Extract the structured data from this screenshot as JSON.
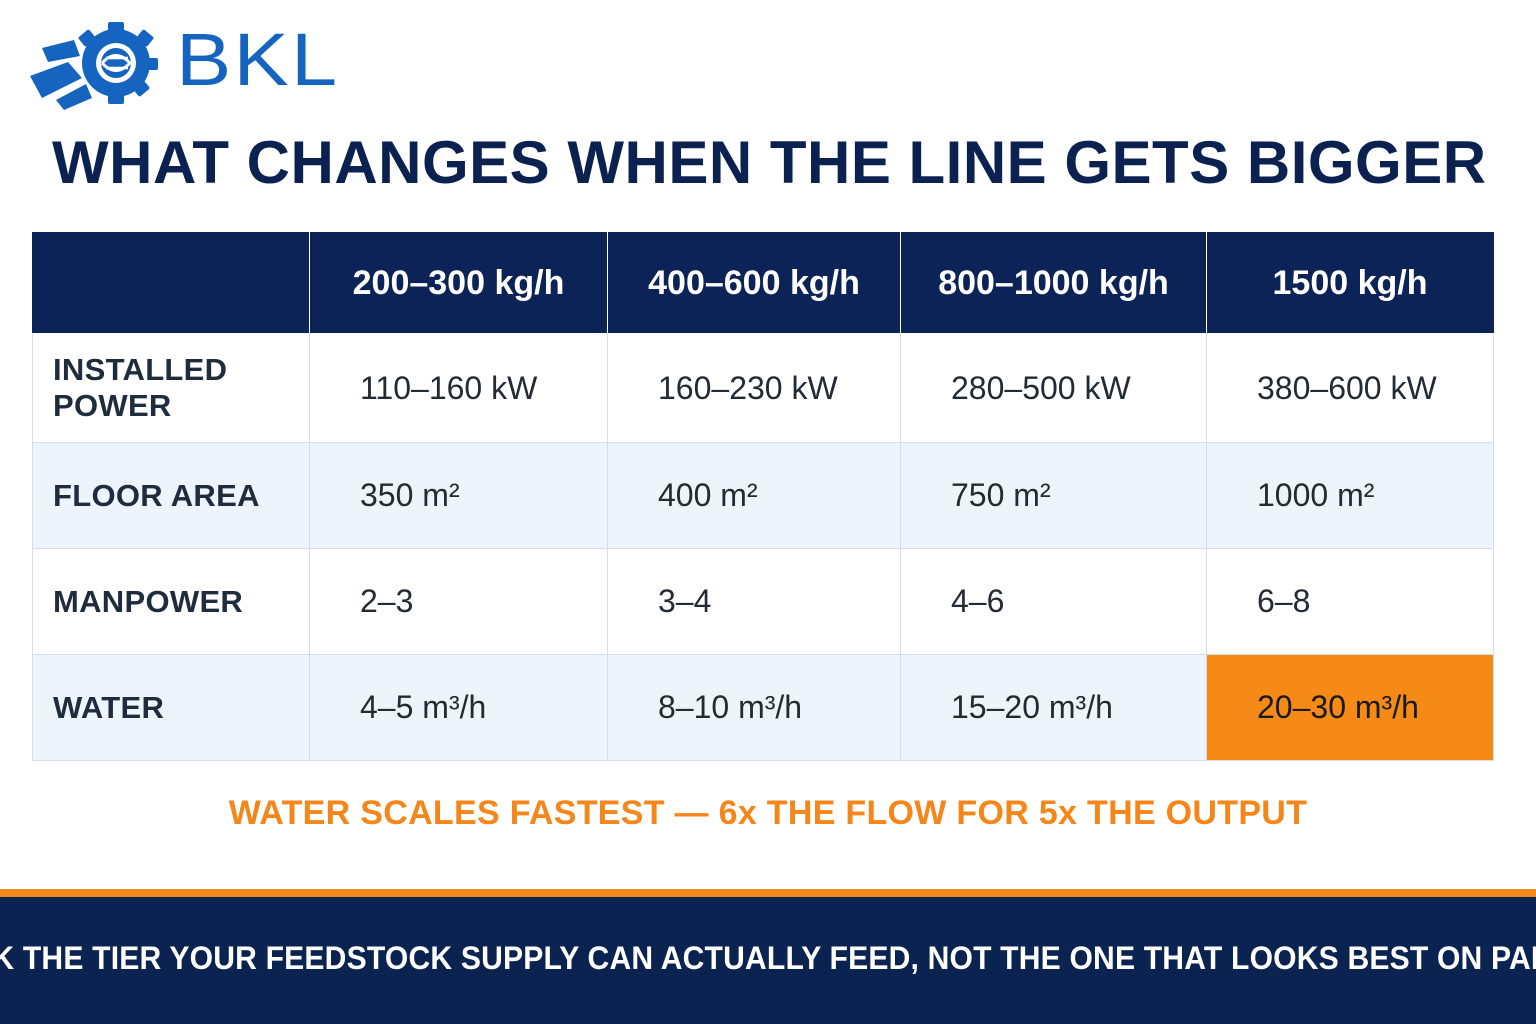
{
  "brand": {
    "name": "BKL",
    "colors": {
      "primary": "#1565c0",
      "navy": "#0b2356",
      "accent": "#f58a16"
    },
    "logo_icon": "gear-globe-icon"
  },
  "title": "WHAT CHANGES WHEN THE LINE GETS BIGGER",
  "table": {
    "headers": [
      "",
      "200–300 kg/h",
      "400–600 kg/h",
      "800–1000 kg/h",
      "1500 kg/h"
    ],
    "rows": [
      {
        "label": "INSTALLED POWER",
        "values": [
          "110–160 kW",
          "160–230 kW",
          "280–500 kW",
          "380–600 kW"
        ]
      },
      {
        "label": "FLOOR AREA",
        "values": [
          "350 m²",
          "400 m²",
          "750 m²",
          "1000 m²"
        ]
      },
      {
        "label": "MANPOWER",
        "values": [
          "2–3",
          "3–4",
          "4–6",
          "6–8"
        ]
      },
      {
        "label": "WATER",
        "values": [
          "4–5 m³/h",
          "8–10 m³/h",
          "15–20 m³/h",
          "20–30 m³/h"
        ]
      }
    ],
    "highlight": {
      "row": 3,
      "col": 3
    }
  },
  "note": "WATER SCALES FASTEST — 6x THE FLOW FOR 5x THE OUTPUT",
  "footer": "PICK THE TIER YOUR FEEDSTOCK SUPPLY CAN ACTUALLY FEED, NOT THE ONE THAT LOOKS BEST ON PAPER"
}
